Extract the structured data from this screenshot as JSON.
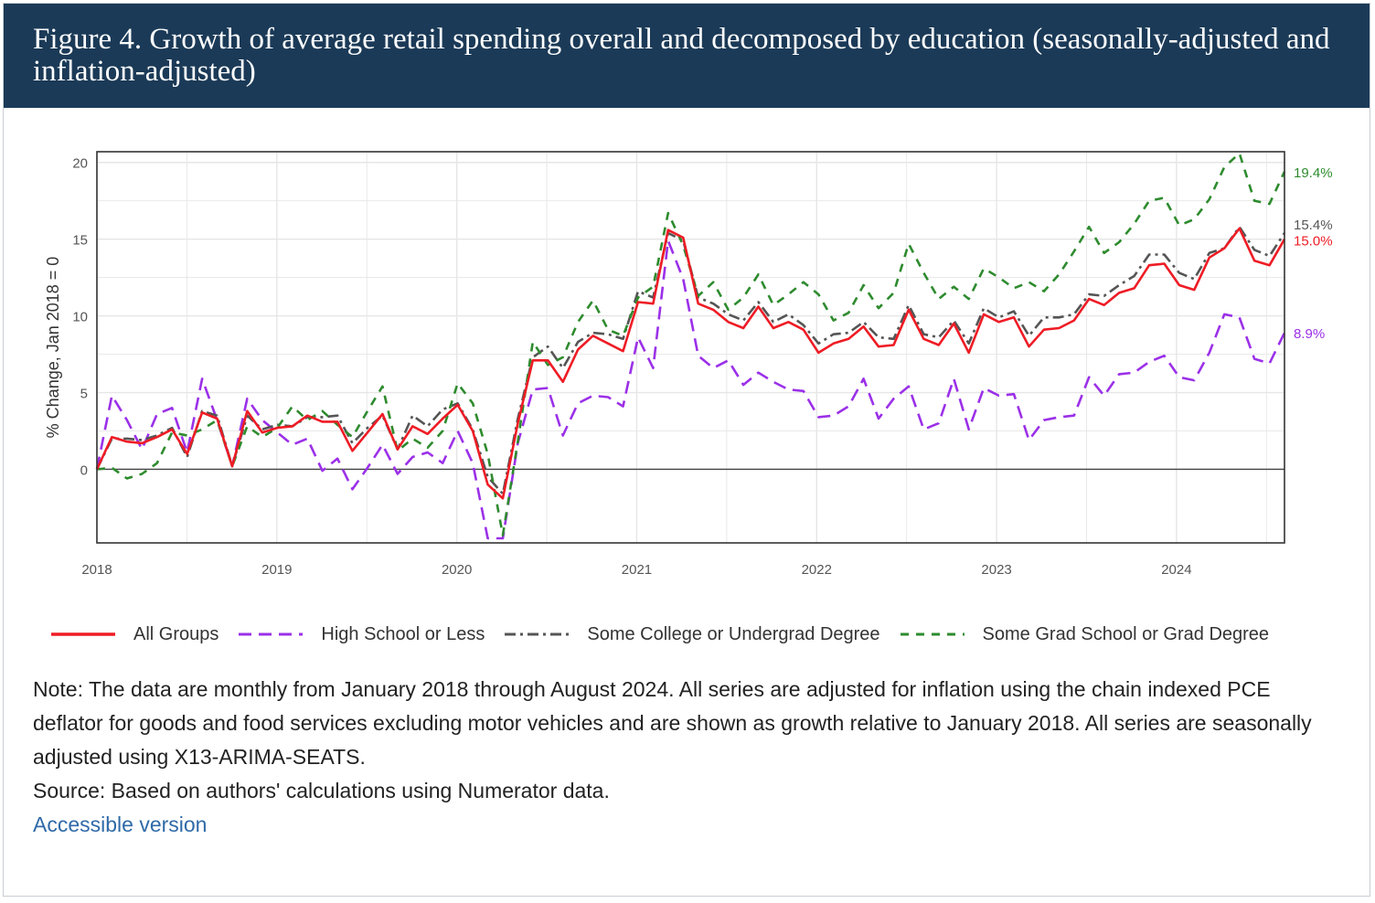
{
  "header": {
    "title": "Figure 4. Growth of average retail spending overall and decomposed by education (seasonally-adjusted and inflation-adjusted)"
  },
  "chart_data": {
    "type": "line",
    "title": "Figure 4. Growth of average retail spending overall and decomposed by education (seasonally-adjusted and inflation-adjusted)",
    "xlabel": "",
    "ylabel": "% Change, Jan 2018 = 0",
    "x_start": "2018-01",
    "x_end": "2024-08",
    "xlim": [
      2018.0,
      2024.6
    ],
    "ylim": [
      -4.8,
      20.7
    ],
    "xticks": [
      2018,
      2019,
      2020,
      2021,
      2022,
      2023,
      2024
    ],
    "xtick_labels": [
      "2018",
      "2019",
      "2020",
      "2021",
      "2022",
      "2023",
      "2024"
    ],
    "yticks": [
      0,
      5,
      10,
      15,
      20
    ],
    "ytick_labels": [
      "0",
      "5",
      "10",
      "15",
      "20"
    ],
    "grid": true,
    "legend_position": "bottom",
    "series": [
      {
        "name": "All Groups",
        "color": "#ee1c25",
        "dash": "solid",
        "end_label": "15.0%",
        "values": [
          0.0,
          2.1,
          1.8,
          1.7,
          2.1,
          2.6,
          1.0,
          3.7,
          3.3,
          0.2,
          3.8,
          2.4,
          2.7,
          2.8,
          3.5,
          3.1,
          3.1,
          1.2,
          2.4,
          3.6,
          1.3,
          2.8,
          2.3,
          3.3,
          4.2,
          2.5,
          -1.0,
          -1.9,
          3.0,
          7.1,
          7.1,
          5.7,
          7.8,
          8.7,
          8.2,
          7.7,
          10.9,
          10.8,
          15.6,
          15.1,
          10.8,
          10.4,
          9.6,
          9.2,
          10.6,
          9.2,
          9.6,
          9.1,
          7.6,
          8.2,
          8.5,
          9.3,
          8.0,
          8.1,
          10.4,
          8.5,
          8.1,
          9.5,
          7.6,
          10.1,
          9.6,
          9.9,
          8.0,
          9.1,
          9.2,
          9.7,
          11.1,
          10.7,
          11.5,
          11.8,
          13.3,
          13.4,
          12.0,
          11.7,
          13.8,
          14.4,
          15.7,
          13.6,
          13.3,
          15.0
        ]
      },
      {
        "name": "High School or Less",
        "color": "#9b30e8",
        "dash": "dash",
        "end_label": "8.9%",
        "values": [
          0.0,
          4.8,
          3.2,
          1.3,
          3.6,
          4.0,
          1.1,
          5.9,
          3.2,
          0.2,
          4.6,
          3.2,
          2.4,
          1.6,
          2.0,
          -0.1,
          0.7,
          -1.3,
          0.1,
          1.6,
          -0.3,
          0.8,
          1.1,
          0.4,
          2.5,
          0.4,
          -4.5,
          -4.5,
          1.7,
          5.2,
          5.3,
          2.2,
          4.3,
          4.8,
          4.7,
          4.1,
          8.6,
          6.6,
          14.9,
          12.4,
          7.4,
          6.6,
          7.1,
          5.5,
          6.3,
          5.7,
          5.2,
          5.1,
          3.4,
          3.5,
          4.1,
          5.9,
          3.3,
          4.6,
          5.4,
          2.6,
          3.0,
          5.9,
          2.6,
          5.3,
          4.8,
          4.9,
          1.9,
          3.2,
          3.4,
          3.5,
          6.0,
          4.8,
          6.2,
          6.3,
          7.0,
          7.4,
          6.0,
          5.8,
          7.6,
          10.1,
          9.9,
          7.2,
          6.9,
          8.9
        ]
      },
      {
        "name": "Some College or Undergrad Degree",
        "color": "#555555",
        "dash": "dashdot",
        "end_label": "15.4%",
        "values": [
          0.0,
          2.0,
          2.0,
          1.9,
          2.2,
          2.7,
          0.8,
          3.8,
          3.5,
          0.2,
          3.5,
          2.6,
          2.9,
          2.8,
          3.4,
          3.4,
          3.5,
          1.7,
          2.7,
          3.5,
          1.3,
          3.5,
          2.8,
          3.9,
          4.3,
          2.6,
          -0.5,
          -1.6,
          3.3,
          7.3,
          8.0,
          6.6,
          8.3,
          8.9,
          8.8,
          8.5,
          11.6,
          11.2,
          15.4,
          14.9,
          11.2,
          10.8,
          10.1,
          9.7,
          10.9,
          9.6,
          10.1,
          9.4,
          8.2,
          8.8,
          8.9,
          9.6,
          8.6,
          8.5,
          10.7,
          8.8,
          8.6,
          9.7,
          8.2,
          10.5,
          9.9,
          10.3,
          8.7,
          9.9,
          9.9,
          10.1,
          11.4,
          11.3,
          12.0,
          12.6,
          14.0,
          14.0,
          12.8,
          12.4,
          14.1,
          14.4,
          15.8,
          14.3,
          13.9,
          15.4
        ]
      },
      {
        "name": "Some Grad School or Grad Degree",
        "color": "#2e8b2e",
        "dash": "longdash",
        "end_label": "19.4%",
        "values": [
          0.0,
          0.1,
          -0.6,
          -0.3,
          0.4,
          2.4,
          2.2,
          2.6,
          3.2,
          0.2,
          2.8,
          2.1,
          2.7,
          4.1,
          3.2,
          3.8,
          2.9,
          2.1,
          3.8,
          5.4,
          1.2,
          2.0,
          1.4,
          2.5,
          5.6,
          4.3,
          1.0,
          -4.3,
          1.8,
          8.3,
          6.8,
          7.3,
          9.6,
          11.0,
          9.1,
          8.7,
          11.2,
          11.9,
          16.7,
          14.6,
          11.3,
          12.2,
          10.4,
          11.2,
          12.7,
          10.7,
          11.4,
          12.2,
          11.4,
          9.7,
          10.2,
          12.0,
          10.5,
          11.5,
          14.7,
          12.8,
          11.1,
          11.9,
          11.1,
          13.1,
          12.5,
          11.8,
          12.2,
          11.6,
          12.7,
          14.2,
          15.8,
          14.1,
          14.8,
          16.0,
          17.5,
          17.7,
          15.9,
          16.3,
          17.6,
          19.7,
          20.6,
          17.5,
          17.3,
          19.4
        ]
      }
    ]
  },
  "legend": {
    "items": [
      {
        "label": "All Groups",
        "color": "#ee1c25"
      },
      {
        "label": "High School or Less",
        "color": "#9b30e8"
      },
      {
        "label": "Some College or Undergrad Degree",
        "color": "#555555"
      },
      {
        "label": "Some Grad School or Grad Degree",
        "color": "#2e8b2e"
      }
    ]
  },
  "notes": {
    "note": "Note: The data are monthly from January 2018 through August 2024. All series are adjusted for inflation using the chain indexed PCE deflator for goods and food services excluding motor vehicles and are shown as growth relative to January 2018. All series are seasonally adjusted using X13-ARIMA-SEATS.",
    "source": "Source: Based on authors' calculations using Numerator data.",
    "link_label": "Accessible version"
  }
}
